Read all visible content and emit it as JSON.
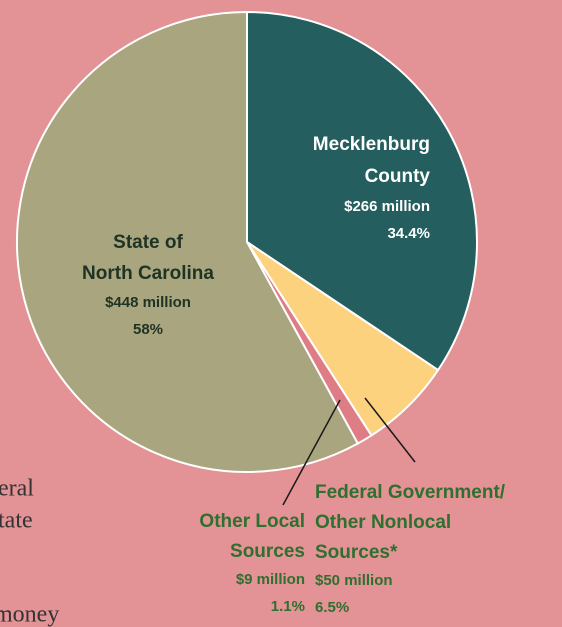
{
  "chart_data": {
    "type": "pie",
    "categories": [
      [
        "Mecklenburg",
        "County"
      ],
      [
        "Federal Government/",
        "Other Nonlocal",
        "Sources*"
      ],
      [
        "Other Local",
        "Sources"
      ],
      [
        "State of",
        "North Carolina"
      ]
    ],
    "values": [
      34.4,
      6.5,
      1.1,
      58
    ],
    "value_labels": [
      "34.4%",
      "6.5%",
      "1.1%",
      "58%"
    ],
    "amounts": [
      266,
      50,
      9,
      448
    ],
    "amount_labels": [
      "$266 million",
      "$50 million",
      "$9 million",
      "$448 million"
    ],
    "colors": [
      "#245e5e",
      "#fcd27e",
      "#de7d86",
      "#a9a57e"
    ]
  },
  "background_text": [
    "eral",
    "tate",
    "money"
  ]
}
